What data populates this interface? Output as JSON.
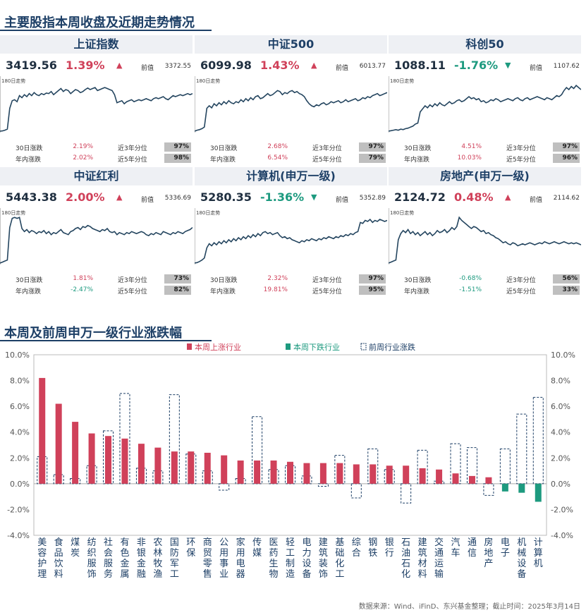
{
  "title_top": "主要股指本周收盘及近期走势情况",
  "title_bottom": "本周及前周申万一级行业涨跌幅",
  "common": {
    "prev_label": "前值",
    "spark_label": "180日走势",
    "m30_label": "30日涨跌",
    "ytd_label": "年内涨跌",
    "p3_label": "近3年分位",
    "p5_label": "近5年分位"
  },
  "panels": [
    {
      "name": "上证指数",
      "close": "3419.56",
      "pct": "1.39%",
      "dir": "up",
      "arrow": "▲",
      "prev": "3372.55",
      "m30": "2.19%",
      "m30dir": "up",
      "ytd": "2.02%",
      "ytddir": "up",
      "p3": "97%",
      "p5": "98%",
      "trend": [
        0,
        0.5,
        2,
        4,
        45,
        60,
        62,
        58,
        70,
        66,
        72,
        68,
        74,
        70,
        76,
        72,
        70,
        74,
        72,
        75,
        74,
        78,
        72,
        76,
        80,
        84,
        78,
        82,
        80,
        74,
        78,
        82,
        80,
        76,
        78,
        82,
        85,
        82,
        84,
        86,
        80,
        82,
        84,
        86,
        84,
        82,
        80,
        72,
        56,
        58,
        60,
        54,
        58,
        60,
        62,
        58,
        60,
        62,
        60,
        62,
        64,
        62,
        60,
        64,
        66,
        64,
        66,
        68,
        64,
        62,
        66,
        70,
        68,
        70,
        72,
        70,
        72,
        74,
        72,
        74
      ]
    },
    {
      "name": "中证500",
      "close": "6099.98",
      "pct": "1.43%",
      "dir": "up",
      "arrow": "▲",
      "prev": "6013.77",
      "m30": "2.68%",
      "m30dir": "up",
      "ytd": "6.54%",
      "ytddir": "up",
      "p3": "97%",
      "p5": "79%",
      "trend": [
        0,
        2,
        3,
        5,
        8,
        45,
        50,
        46,
        54,
        50,
        56,
        52,
        58,
        54,
        60,
        56,
        54,
        58,
        56,
        62,
        58,
        64,
        60,
        66,
        62,
        68,
        70,
        64,
        66,
        70,
        74,
        70,
        72,
        76,
        80,
        78,
        72,
        76,
        74,
        78,
        80,
        76,
        78,
        74,
        72,
        68,
        60,
        54,
        50,
        48,
        52,
        50,
        54,
        56,
        52,
        54,
        58,
        56,
        58,
        60,
        56,
        58,
        62,
        58,
        60,
        62,
        64,
        60,
        62,
        66,
        64,
        68,
        66,
        70,
        72,
        74,
        70,
        72,
        74,
        76
      ]
    },
    {
      "name": "科创50",
      "close": "1088.11",
      "pct": "-1.76%",
      "dir": "down",
      "arrow": "▼",
      "prev": "1107.62",
      "m30": "4.51%",
      "m30dir": "up",
      "ytd": "10.03%",
      "ytddir": "up",
      "p3": "97%",
      "p5": "96%",
      "trend": [
        0,
        1,
        2,
        3,
        2,
        4,
        3,
        5,
        6,
        8,
        10,
        14,
        16,
        38,
        44,
        50,
        46,
        52,
        48,
        54,
        50,
        56,
        52,
        50,
        54,
        58,
        54,
        56,
        60,
        62,
        58,
        60,
        64,
        68,
        64,
        66,
        62,
        64,
        58,
        60,
        56,
        58,
        62,
        60,
        64,
        62,
        58,
        60,
        62,
        64,
        62,
        60,
        64,
        66,
        62,
        60,
        64,
        66,
        62,
        64,
        66,
        68,
        66,
        64,
        62,
        66,
        64,
        62,
        66,
        70,
        68,
        72,
        80,
        86,
        82,
        88,
        84,
        90,
        86,
        82
      ]
    },
    {
      "name": "中证红利",
      "close": "5443.38",
      "pct": "2.00%",
      "dir": "up",
      "arrow": "▲",
      "prev": "5336.69",
      "m30": "1.81%",
      "m30dir": "up",
      "ytd": "-2.47%",
      "ytddir": "down",
      "p3": "73%",
      "p5": "82%",
      "trend": [
        0,
        2,
        4,
        6,
        70,
        88,
        90,
        88,
        90,
        68,
        62,
        66,
        60,
        64,
        62,
        58,
        62,
        60,
        64,
        58,
        62,
        56,
        60,
        58,
        62,
        66,
        60,
        58,
        56,
        62,
        64,
        68,
        70,
        66,
        72,
        70,
        74,
        72,
        68,
        66,
        64,
        62,
        66,
        64,
        68,
        62,
        60,
        62,
        56,
        60,
        58,
        56,
        60,
        58,
        62,
        60,
        58,
        60,
        62,
        60,
        56,
        54,
        58,
        56,
        60,
        58,
        56,
        62,
        60,
        58,
        56,
        60,
        58,
        62,
        60,
        58,
        62,
        64,
        66,
        70
      ]
    },
    {
      "name": "计算机(申万一级)",
      "close": "5280.35",
      "pct": "-1.36%",
      "dir": "down",
      "arrow": "▼",
      "prev": "5352.89",
      "m30": "2.32%",
      "m30dir": "up",
      "ytd": "19.81%",
      "ytddir": "up",
      "p3": "97%",
      "p5": "95%",
      "trend": [
        0,
        1,
        3,
        6,
        10,
        30,
        38,
        34,
        40,
        36,
        42,
        38,
        44,
        40,
        46,
        42,
        48,
        44,
        50,
        46,
        52,
        48,
        54,
        50,
        56,
        52,
        58,
        54,
        60,
        62,
        58,
        60,
        56,
        58,
        60,
        54,
        50,
        52,
        48,
        50,
        46,
        44,
        42,
        40,
        44,
        42,
        46,
        44,
        48,
        46,
        44,
        48,
        46,
        50,
        48,
        52,
        50,
        48,
        52,
        50,
        54,
        52,
        56,
        54,
        58,
        56,
        60,
        62,
        80,
        78,
        84,
        82,
        86,
        80,
        84,
        82,
        86,
        84,
        82,
        84
      ]
    },
    {
      "name": "房地产(申万一级)",
      "close": "2124.72",
      "pct": "0.48%",
      "dir": "up",
      "arrow": "▲",
      "prev": "2114.62",
      "m30": "-0.68%",
      "m30dir": "down",
      "ytd": "-1.51%",
      "ytddir": "down",
      "p3": "56%",
      "p5": "33%",
      "trend": [
        0,
        2,
        4,
        6,
        46,
        58,
        64,
        60,
        66,
        58,
        62,
        56,
        60,
        54,
        58,
        62,
        56,
        60,
        54,
        58,
        64,
        60,
        62,
        66,
        60,
        64,
        70,
        66,
        72,
        90,
        84,
        80,
        76,
        72,
        68,
        72,
        70,
        66,
        62,
        64,
        58,
        60,
        56,
        54,
        50,
        48,
        44,
        40,
        42,
        38,
        36,
        40,
        38,
        34,
        36,
        38,
        36,
        38,
        40,
        38,
        36,
        38,
        40,
        38,
        42,
        40,
        38,
        40,
        42,
        40,
        38,
        40,
        42,
        40,
        38,
        40,
        38,
        40,
        38,
        36
      ]
    }
  ],
  "chart_data": {
    "type": "bar",
    "title": "",
    "categories": [
      "美容护理",
      "食品饮料",
      "煤炭",
      "纺织服饰",
      "社会服务",
      "有色金属",
      "非银金融",
      "农林牧渔",
      "国防军工",
      "环保",
      "商贸零售",
      "公用事业",
      "家用电器",
      "传媒",
      "医药生物",
      "轻工制造",
      "电力设备",
      "建筑装饰",
      "基础化工",
      "综合",
      "钢铁",
      "银行",
      "石油石化",
      "建筑材料",
      "交通运输",
      "汽车",
      "通信",
      "房地产",
      "电子",
      "机械设备",
      "计算机"
    ],
    "series": [
      {
        "name": "本周上涨行业",
        "color": "#d0415a",
        "values": [
          8.2,
          6.2,
          4.8,
          3.9,
          3.7,
          3.5,
          3.1,
          2.8,
          2.5,
          2.5,
          2.4,
          2.2,
          1.8,
          1.8,
          1.8,
          1.7,
          1.6,
          1.6,
          1.6,
          1.5,
          1.5,
          1.4,
          1.4,
          1.2,
          1.1,
          0.8,
          0.6,
          0.5,
          null,
          null,
          null
        ]
      },
      {
        "name": "本周下跌行业",
        "color": "#1d9a7f",
        "values": [
          null,
          null,
          null,
          null,
          null,
          null,
          null,
          null,
          null,
          null,
          null,
          null,
          null,
          null,
          null,
          null,
          null,
          null,
          null,
          null,
          null,
          null,
          null,
          null,
          null,
          null,
          null,
          null,
          -0.6,
          -0.7,
          -1.4
        ]
      },
      {
        "name": "前周行业涨跌",
        "values": [
          2.1,
          0.7,
          0.4,
          1.4,
          4.1,
          7.0,
          1.2,
          1.0,
          6.9,
          2.3,
          1.0,
          -0.5,
          0.4,
          5.2,
          1.1,
          1.4,
          0.6,
          -0.2,
          2.2,
          -1.1,
          2.7,
          1.1,
          -1.5,
          2.6,
          0.2,
          3.1,
          2.8,
          -0.9,
          2.7,
          5.4,
          6.7
        ]
      }
    ],
    "yticks": [
      "10.0%",
      "8.0%",
      "6.0%",
      "4.0%",
      "2.0%",
      "0.0%",
      "-2.0%",
      "-4.0%"
    ],
    "ylim": [
      -4,
      10
    ],
    "legend_position": "top"
  },
  "footer": "数据来源：Wind、iFinD、东兴基金整理；截止时间：2025年3月14日"
}
